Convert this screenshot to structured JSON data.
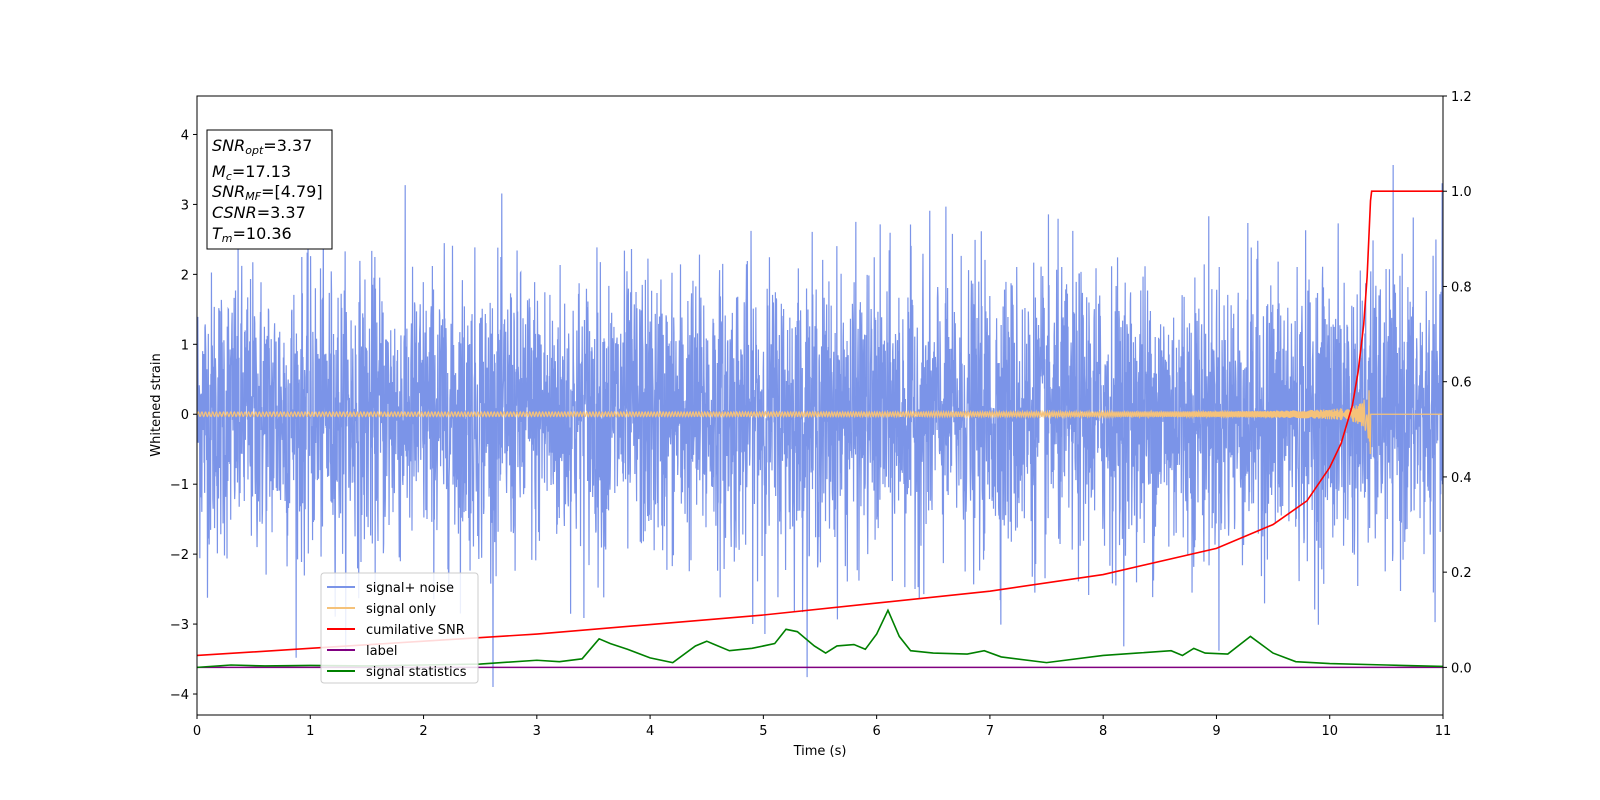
{
  "chart_data": {
    "type": "line",
    "xlabel": "Time (s)",
    "ylabel": "Whitened strain",
    "xlim": [
      0,
      11
    ],
    "ylim_left": [
      -4.3,
      4.55
    ],
    "ylim_right": [
      -0.1,
      1.2
    ],
    "x_ticks": [
      "0",
      "1",
      "2",
      "3",
      "4",
      "5",
      "6",
      "7",
      "8",
      "9",
      "10",
      "11"
    ],
    "y_ticks_left": [
      "−4",
      "−3",
      "−2",
      "−1",
      "0",
      "1",
      "2",
      "3",
      "4"
    ],
    "y_ticks_right": [
      "0.0",
      "0.2",
      "0.4",
      "0.6",
      "0.8",
      "1.0",
      "1.2"
    ],
    "grid": false,
    "legend_position": "lower-left",
    "merger_time": 10.36,
    "annotation": {
      "lines": [
        {
          "sym": "SNR",
          "sub": "opt",
          "val": "=3.37"
        },
        {
          "sym": "M",
          "sub": "c",
          "val": "=17.13"
        },
        {
          "sym": "SNR",
          "sub": "MF",
          "val": "=[4.79]"
        },
        {
          "sym": "CSNR",
          "sub": "",
          "val": "=3.37"
        },
        {
          "sym": "T",
          "sub": "m",
          "val": "=10.36"
        }
      ]
    },
    "series": [
      {
        "name": "signal+ noise",
        "color": "#7b94e8",
        "axis": "left",
        "description_values": {
          "noise_sigma": 1.0,
          "min": -3.9,
          "max": 3.6
        }
      },
      {
        "name": "signal only",
        "color": "#f5c27a",
        "axis": "left",
        "chirp_amplitude_at_merger": 0.6
      },
      {
        "name": "cumilative SNR",
        "color": "#ff0000",
        "axis": "right",
        "x": [
          0,
          1,
          2,
          3,
          4,
          5,
          6,
          7,
          8,
          9,
          9.5,
          9.8,
          10,
          10.1,
          10.2,
          10.25,
          10.3,
          10.33,
          10.36,
          10.37,
          11
        ],
        "y": [
          0.025,
          0.04,
          0.055,
          0.07,
          0.09,
          0.11,
          0.135,
          0.16,
          0.195,
          0.25,
          0.3,
          0.35,
          0.42,
          0.47,
          0.55,
          0.62,
          0.72,
          0.82,
          0.98,
          1.0,
          1.0
        ]
      },
      {
        "name": "label",
        "color": "#800080",
        "axis": "right",
        "x": [
          0,
          11
        ],
        "y": [
          0,
          0
        ]
      },
      {
        "name": "signal statistics",
        "color": "#008000",
        "axis": "right",
        "x": [
          0,
          0.3,
          0.6,
          1.0,
          1.5,
          2.0,
          2.5,
          3.0,
          3.2,
          3.4,
          3.55,
          3.65,
          3.8,
          4.0,
          4.2,
          4.4,
          4.5,
          4.55,
          4.7,
          4.9,
          5.1,
          5.2,
          5.3,
          5.45,
          5.55,
          5.65,
          5.8,
          5.9,
          6.0,
          6.1,
          6.2,
          6.3,
          6.5,
          6.8,
          6.95,
          7.1,
          7.5,
          8.0,
          8.3,
          8.6,
          8.7,
          8.8,
          8.9,
          9.1,
          9.3,
          9.5,
          9.7,
          10.0,
          10.5,
          11
        ],
        "y": [
          0.0,
          0.005,
          0.003,
          0.004,
          0.003,
          0.005,
          0.007,
          0.015,
          0.012,
          0.018,
          0.06,
          0.05,
          0.038,
          0.02,
          0.01,
          0.045,
          0.055,
          0.05,
          0.035,
          0.04,
          0.05,
          0.08,
          0.075,
          0.045,
          0.03,
          0.045,
          0.048,
          0.038,
          0.07,
          0.12,
          0.065,
          0.035,
          0.03,
          0.028,
          0.035,
          0.022,
          0.01,
          0.025,
          0.03,
          0.035,
          0.025,
          0.04,
          0.03,
          0.028,
          0.065,
          0.03,
          0.012,
          0.008,
          0.005,
          0.002
        ]
      }
    ]
  }
}
